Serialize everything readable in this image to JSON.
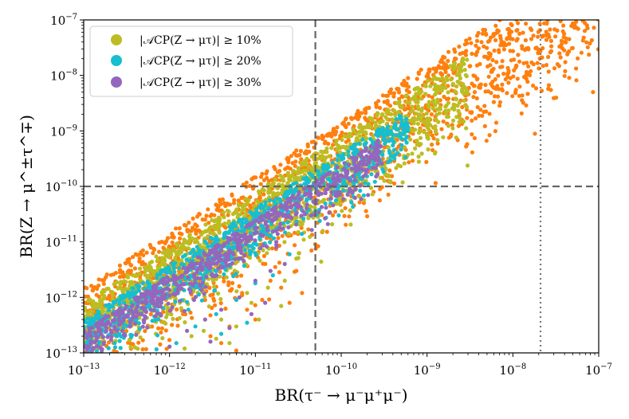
{
  "chart_data": {
    "type": "scatter",
    "xscale": "log",
    "yscale": "log",
    "xlim": [
      1e-13,
      1e-07
    ],
    "ylim": [
      1e-13,
      1e-07
    ],
    "xlabel": "BR(τ⁻ → μ⁻μ⁺μ⁻)",
    "ylabel": "BR(Z → μ^±τ^∓)",
    "x_ticks": [
      {
        "base": "10",
        "exp": "−13",
        "value": 1e-13
      },
      {
        "base": "10",
        "exp": "−12",
        "value": 1e-12
      },
      {
        "base": "10",
        "exp": "−11",
        "value": 1e-11
      },
      {
        "base": "10",
        "exp": "−10",
        "value": 1e-10
      },
      {
        "base": "10",
        "exp": "−9",
        "value": 1e-09
      },
      {
        "base": "10",
        "exp": "−8",
        "value": 1e-08
      },
      {
        "base": "10",
        "exp": "−7",
        "value": 1e-07
      }
    ],
    "y_ticks": [
      {
        "base": "10",
        "exp": "−13",
        "value": 1e-13
      },
      {
        "base": "10",
        "exp": "−12",
        "value": 1e-12
      },
      {
        "base": "10",
        "exp": "−11",
        "value": 1e-11
      },
      {
        "base": "10",
        "exp": "−10",
        "value": 1e-10
      },
      {
        "base": "10",
        "exp": "−9",
        "value": 1e-09
      },
      {
        "base": "10",
        "exp": "−8",
        "value": 1e-08
      },
      {
        "base": "10",
        "exp": "−7",
        "value": 1e-07
      }
    ],
    "legend_position": "top-left",
    "legend": [
      {
        "label": "|𝒜CP(Z → μτ)| ≥ 10%",
        "color": "#bcbd22"
      },
      {
        "label": "|𝒜CP(Z → μτ)| ≥ 20%",
        "color": "#17becf"
      },
      {
        "label": "|𝒜CP(Z → μτ)| ≥ 30%",
        "color": "#9467bd"
      }
    ],
    "reference_lines": [
      {
        "orientation": "vertical",
        "value": 5e-11,
        "style": "dashed",
        "color": "#666666"
      },
      {
        "orientation": "horizontal",
        "value": 1e-10,
        "style": "dashed",
        "color": "#666666"
      },
      {
        "orientation": "vertical",
        "value": 2.1e-08,
        "style": "dotted",
        "color": "#777777"
      }
    ],
    "series": [
      {
        "key": "all",
        "color": "#ff7f0e",
        "band": {
          "x_range": [
            1e-13,
            1e-07
          ],
          "upper_ratio": 15,
          "lower_ratio": 0.3,
          "spread": 1.0
        },
        "points": [
          [
            1.8e-12,
            9e-14
          ],
          [
            3e-12,
            2e-13
          ],
          [
            5e-12,
            3e-13
          ],
          [
            8e-12,
            6e-13
          ],
          [
            1.2e-11,
            9e-13
          ],
          [
            2e-11,
            1.5e-12
          ],
          [
            3e-11,
            3e-12
          ],
          [
            4.5e-11,
            7e-12
          ],
          [
            6e-11,
            1.5e-11
          ],
          [
            8e-11,
            3e-11
          ],
          [
            1.3e-10,
            8e-11
          ],
          [
            2e-10,
            2e-10
          ],
          [
            3e-10,
            4e-10
          ],
          [
            1.5e-11,
            2e-12
          ],
          [
            2.5e-11,
            8e-13
          ],
          [
            7e-12,
            1.2e-12
          ],
          [
            1e-11,
            4e-13
          ],
          [
            4e-12,
            1.5e-13
          ],
          [
            3.5e-11,
            1.2e-12
          ],
          [
            6e-12,
            1.1e-13
          ]
        ]
      },
      {
        "key": "acp10",
        "color": "#bcbd22",
        "band": {
          "x_range": [
            1e-13,
            3e-09
          ],
          "upper_ratio": 8,
          "lower_ratio": 0.5,
          "spread": 1.0
        },
        "points": [
          [
            1.5e-12,
            1.2e-13
          ],
          [
            2.5e-12,
            2.5e-13
          ],
          [
            4e-12,
            4e-13
          ],
          [
            6e-12,
            3e-13
          ],
          [
            9e-12,
            8e-13
          ],
          [
            1.4e-11,
            1.5e-12
          ],
          [
            2.2e-11,
            2e-12
          ],
          [
            3e-11,
            5e-12
          ],
          [
            1.8e-12,
            2e-13
          ],
          [
            5e-12,
            1.5e-13
          ],
          [
            1.1e-11,
            4e-13
          ],
          [
            3.5e-12,
            1.8e-13
          ],
          [
            8e-12,
            1.2e-12
          ],
          [
            2e-11,
            7e-13
          ]
        ]
      },
      {
        "key": "acp20",
        "color": "#17becf",
        "band": {
          "x_range": [
            1e-13,
            6e-10
          ],
          "upper_ratio": 4,
          "lower_ratio": 0.7,
          "spread": 0.85
        },
        "points": [
          [
            1.2e-12,
            1.5e-13
          ],
          [
            2e-12,
            3e-13
          ],
          [
            3.5e-12,
            5e-13
          ],
          [
            6e-12,
            9e-13
          ],
          [
            1e-11,
            1.8e-12
          ],
          [
            1.6e-11,
            2.5e-12
          ],
          [
            2.5e-11,
            6e-12
          ],
          [
            4e-12,
            2.2e-13
          ],
          [
            8e-12,
            3.5e-13
          ]
        ]
      },
      {
        "key": "acp30",
        "color": "#9467bd",
        "band": {
          "x_range": [
            1e-13,
            3e-10
          ],
          "upper_ratio": 2.5,
          "lower_ratio": 0.8,
          "spread": 0.7
        },
        "points": [
          [
            1e-12,
            1.3e-13
          ],
          [
            1.6e-12,
            2.5e-13
          ],
          [
            2.6e-12,
            4e-13
          ],
          [
            4e-12,
            6e-13
          ],
          [
            6.5e-12,
            1e-12
          ],
          [
            1e-11,
            2e-12
          ],
          [
            1.5e-11,
            3e-12
          ],
          [
            3e-12,
            1.6e-13
          ],
          [
            5e-12,
            2.8e-13
          ],
          [
            9e-12,
            5e-13
          ],
          [
            2.2e-11,
            4e-12
          ],
          [
            1.3e-11,
            8e-13
          ]
        ]
      }
    ]
  }
}
